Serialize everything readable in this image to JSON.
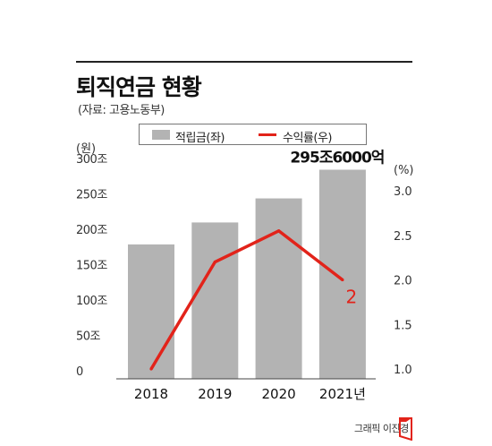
{
  "title": "퇴직연금 현황",
  "source": "(자료: 고용노동부)",
  "legend": {
    "bar_label": "적립금(좌)",
    "line_label": "수익률(우)"
  },
  "credit": "그래픽 이진경",
  "colors": {
    "bar": "#b3b3b3",
    "line": "#e2231a",
    "text": "#222222"
  },
  "chart_data": {
    "type": "bar",
    "categories": [
      "2018",
      "2019",
      "2020",
      "2021년"
    ],
    "series": [
      {
        "name": "적립금(좌)",
        "type": "bar",
        "axis": "left",
        "values": [
          190,
          221,
          255,
          295.6
        ]
      },
      {
        "name": "수익률(우)",
        "type": "line",
        "axis": "right",
        "values": [
          1.0,
          2.2,
          2.55,
          2.0
        ]
      }
    ],
    "left_axis": {
      "unit_label": "(원)",
      "ylim": [
        0,
        300
      ],
      "ticks": [
        0,
        50,
        100,
        150,
        200,
        250,
        300
      ],
      "tick_labels": [
        "0",
        "50조",
        "100조",
        "150조",
        "200조",
        "250조",
        "300조"
      ]
    },
    "right_axis": {
      "unit_label": "(%)",
      "ylim": [
        1.0,
        3.0
      ],
      "ticks": [
        1.0,
        1.5,
        2.0,
        2.5,
        3.0
      ],
      "tick_labels": [
        "1.0",
        "1.5",
        "2.0",
        "2.5",
        "3.0"
      ]
    },
    "annotations": [
      {
        "text": "295조6000억",
        "target": "bar",
        "index": 3
      },
      {
        "text": "2",
        "target": "line",
        "index": 3
      }
    ]
  }
}
